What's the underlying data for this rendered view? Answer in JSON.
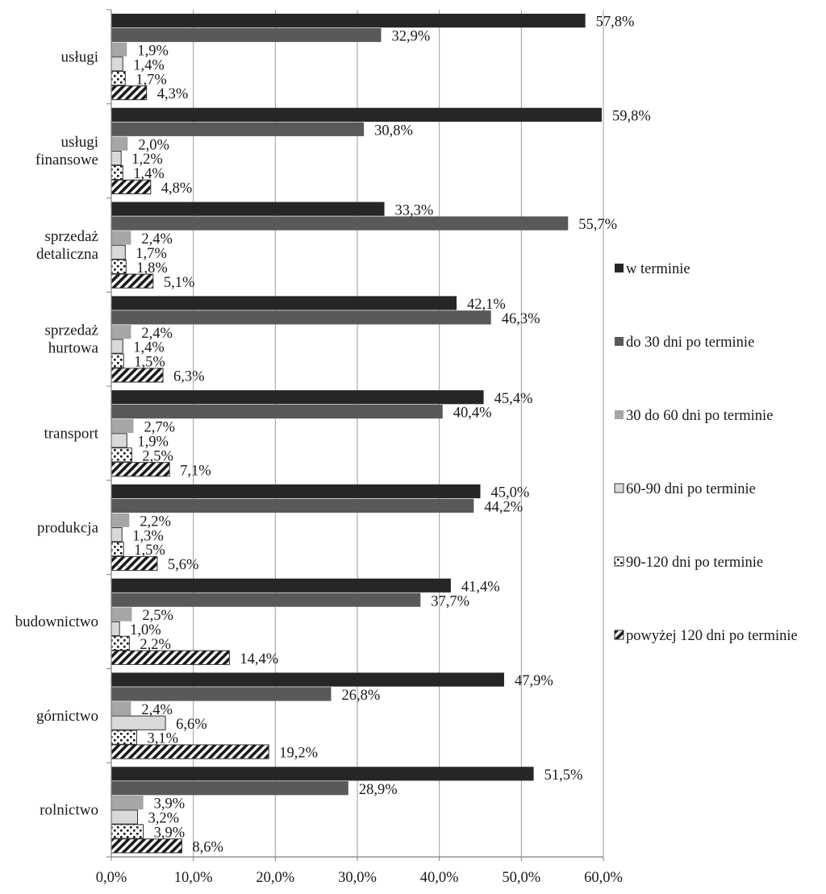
{
  "chart_data": {
    "type": "bar",
    "orientation": "horizontal",
    "categories": [
      [
        "usługi"
      ],
      [
        "usługi",
        "finansowe"
      ],
      [
        "sprzedaż",
        "detaliczna"
      ],
      [
        "sprzedaż",
        "hurtowa"
      ],
      [
        "transport"
      ],
      [
        "produkcja"
      ],
      [
        "budownictwo"
      ],
      [
        "górnictwo"
      ],
      [
        "rolnictwo"
      ]
    ],
    "series": [
      {
        "name": "w terminie",
        "color": "#262626",
        "pattern": "solid",
        "values": [
          57.8,
          59.8,
          33.3,
          42.1,
          45.4,
          45.0,
          41.4,
          47.9,
          51.5
        ],
        "labels": [
          "57,8%",
          "59,8%",
          "33,3%",
          "42,1%",
          "45,4%",
          "45,0%",
          "41,4%",
          "47,9%",
          "51,5%"
        ]
      },
      {
        "name": "do 30 dni po terminie",
        "color": "#595959",
        "pattern": "solid",
        "values": [
          32.9,
          30.8,
          55.7,
          46.3,
          40.4,
          44.2,
          37.7,
          26.8,
          28.9
        ],
        "labels": [
          "32,9%",
          "30,8%",
          "55,7%",
          "46,3%",
          "40,4%",
          "44,2%",
          "37,7%",
          "26,8%",
          "28,9%"
        ]
      },
      {
        "name": "30 do 60 dni po terminie",
        "color": "#a6a6a6",
        "pattern": "solid",
        "values": [
          1.9,
          2.0,
          2.4,
          2.4,
          2.7,
          2.2,
          2.5,
          2.4,
          3.9
        ],
        "labels": [
          "1,9%",
          "2,0%",
          "2,4%",
          "2,4%",
          "2,7%",
          "2,2%",
          "2,5%",
          "2,4%",
          "3,9%"
        ]
      },
      {
        "name": "60-90 dni po terminie",
        "color": "#d9d9d9",
        "pattern": "solid",
        "values": [
          1.4,
          1.2,
          1.7,
          1.4,
          1.9,
          1.3,
          1.0,
          6.6,
          3.2
        ],
        "labels": [
          "1,4%",
          "1,2%",
          "1,7%",
          "1,4%",
          "1,9%",
          "1,3%",
          "1,0%",
          "6,6%",
          "3,2%"
        ]
      },
      {
        "name": "90-120 dni po terminie",
        "color": "#ffffff",
        "pattern": "dots",
        "values": [
          1.7,
          1.4,
          1.8,
          1.5,
          2.5,
          1.5,
          2.2,
          3.1,
          3.9
        ],
        "labels": [
          "1,7%",
          "1,4%",
          "1,8%",
          "1,5%",
          "2,5%",
          "1,5%",
          "2,2%",
          "3,1%",
          "3,9%"
        ]
      },
      {
        "name": "powyżej 120 dni po terminie",
        "color": "#ffffff",
        "pattern": "hatch",
        "values": [
          4.3,
          4.8,
          5.1,
          6.3,
          7.1,
          5.6,
          14.4,
          19.2,
          8.6
        ],
        "labels": [
          "4,3%",
          "4,8%",
          "5,1%",
          "6,3%",
          "7,1%",
          "5,6%",
          "14,4%",
          "19,2%",
          "8,6%"
        ]
      }
    ],
    "xlim": [
      0,
      60
    ],
    "xticks": [
      0,
      10,
      20,
      30,
      40,
      50,
      60
    ],
    "xtick_labels": [
      "0,0%",
      "10,0%",
      "20,0%",
      "30,0%",
      "40,0%",
      "50,0%",
      "60,0%"
    ],
    "grid": "vertical",
    "legend": "right"
  }
}
